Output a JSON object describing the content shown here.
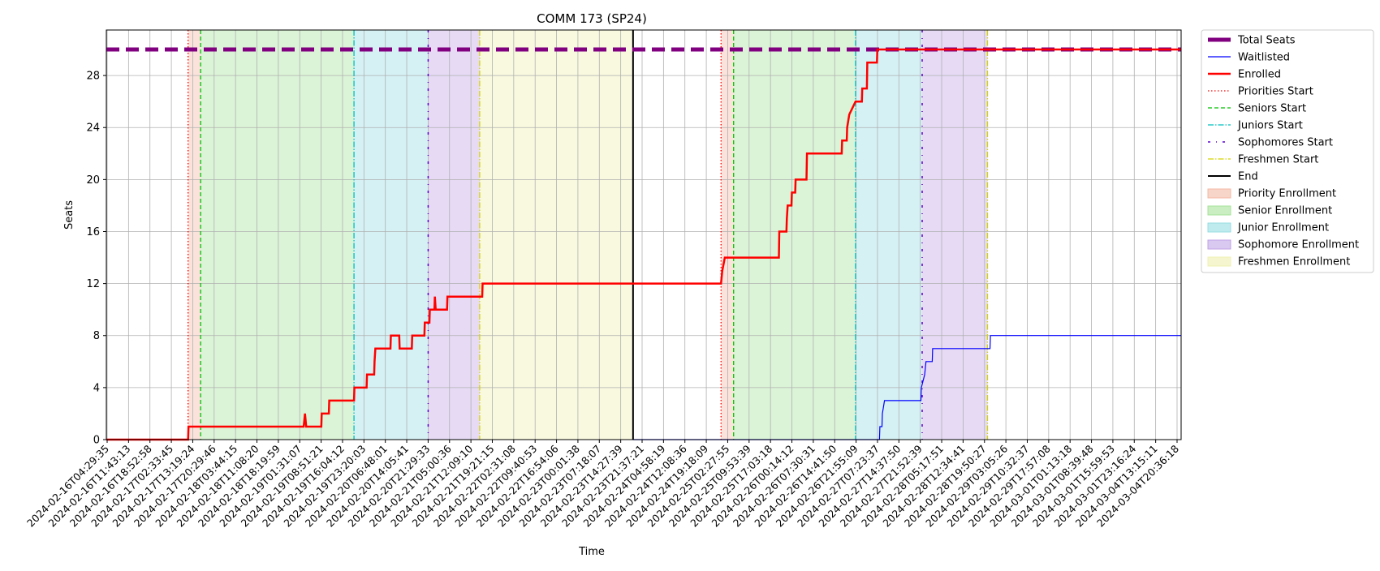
{
  "chart_data": {
    "type": "line",
    "title": "COMM 173 (SP24)",
    "xlabel": "Time",
    "ylabel": "Seats",
    "ylim": [
      0,
      31.5
    ],
    "yticks": [
      0,
      4,
      8,
      12,
      16,
      20,
      24,
      28
    ],
    "grid": true,
    "legend_position": "outside-right",
    "x_range": [
      "2024-02-16T04:29:35",
      "2024-03-05T00:00:00"
    ],
    "x_tick_labels": [
      "2024-02-16T04:29:35",
      "2024-02-16T11:43:13",
      "2024-02-16T18:52:58",
      "2024-02-17T02:33:45",
      "2024-02-17T13:19:24",
      "2024-02-17T20:29:46",
      "2024-02-18T03:44:15",
      "2024-02-18T11:08:20",
      "2024-02-18T18:19:59",
      "2024-02-19T01:31:07",
      "2024-02-19T08:51:21",
      "2024-02-19T16:04:12",
      "2024-02-19T23:20:03",
      "2024-02-20T06:48:01",
      "2024-02-20T14:05:41",
      "2024-02-20T21:29:33",
      "2024-02-21T05:00:36",
      "2024-02-21T12:09:10",
      "2024-02-21T19:21:15",
      "2024-02-22T02:31:08",
      "2024-02-22T09:40:53",
      "2024-02-22T16:54:06",
      "2024-02-23T00:01:38",
      "2024-02-23T07:18:07",
      "2024-02-23T14:27:39",
      "2024-02-23T21:37:21",
      "2024-02-24T04:58:19",
      "2024-02-24T12:08:36",
      "2024-02-24T19:18:09",
      "2024-02-25T02:27:55",
      "2024-02-25T09:53:39",
      "2024-02-25T17:03:18",
      "2024-02-26T00:14:12",
      "2024-02-26T07:30:31",
      "2024-02-26T14:41:50",
      "2024-02-26T21:55:09",
      "2024-02-27T07:23:37",
      "2024-02-27T14:37:50",
      "2024-02-27T21:52:39",
      "2024-02-28T05:17:51",
      "2024-02-28T12:34:41",
      "2024-02-28T19:50:27",
      "2024-02-29T03:05:26",
      "2024-02-29T10:32:37",
      "2024-02-29T17:57:08",
      "2024-03-01T01:13:18",
      "2024-03-01T08:39:48",
      "2024-03-01T15:59:53",
      "2024-03-01T23:16:24",
      "2024-03-04T13:15:11",
      "2024-03-04T20:36:18"
    ],
    "total_seats": 30,
    "phases": [
      {
        "name": "Priority Enrollment",
        "start": "2024-02-17T13:00:00",
        "end": "2024-02-17T18:00:00",
        "color": "#f4b9a5"
      },
      {
        "name": "Senior Enrollment",
        "start": "2024-02-17T18:00:00",
        "end": "2024-02-20T07:00:00",
        "color": "#a6e39a"
      },
      {
        "name": "Junior Enrollment",
        "start": "2024-02-20T07:00:00",
        "end": "2024-02-21T12:30:00",
        "color": "#96dde3"
      },
      {
        "name": "Sophomore Enrollment",
        "start": "2024-02-21T12:30:00",
        "end": "2024-02-22T09:00:00",
        "color": "#c0a3e6"
      },
      {
        "name": "Freshmen Enrollment",
        "start": "2024-02-22T09:00:00",
        "end": "2024-02-24T22:00:00",
        "color": "#eff0b0"
      },
      {
        "name": "Priority Enrollment",
        "start": "2024-02-26T09:00:00",
        "end": "2024-02-26T14:00:00",
        "color": "#f4b9a5"
      },
      {
        "name": "Senior Enrollment",
        "start": "2024-02-26T14:00:00",
        "end": "2024-02-28T14:30:00",
        "color": "#a6e39a"
      },
      {
        "name": "Junior Enrollment",
        "start": "2024-02-28T14:30:00",
        "end": "2024-02-29T17:00:00",
        "color": "#96dde3"
      },
      {
        "name": "Sophomore Enrollment",
        "start": "2024-02-29T17:00:00",
        "end": "2024-03-01T19:00:00",
        "color": "#c0a3e6"
      }
    ],
    "markers": [
      {
        "name": "Priorities Start",
        "t": [
          "2024-02-17T13:00:00",
          "2024-02-26T09:00:00"
        ]
      },
      {
        "name": "Seniors Start",
        "t": [
          "2024-02-17T18:00:00",
          "2024-02-26T14:00:00"
        ]
      },
      {
        "name": "Juniors Start",
        "t": [
          "2024-02-20T07:00:00",
          "2024-02-28T14:30:00"
        ]
      },
      {
        "name": "Sophomores Start",
        "t": [
          "2024-02-21T12:30:00",
          "2024-02-29T17:00:00"
        ]
      },
      {
        "name": "Freshmen Start",
        "t": [
          "2024-02-22T09:00:00",
          "2024-03-01T19:00:00"
        ]
      },
      {
        "name": "End",
        "t": [
          "2024-02-24T22:00:00"
        ]
      }
    ],
    "series": [
      {
        "name": "Enrolled",
        "points": [
          [
            "2024-02-16T04:29:35",
            0
          ],
          [
            "2024-02-17T13:00:00",
            0
          ],
          [
            "2024-02-17T13:10:00",
            1
          ],
          [
            "2024-02-19T11:00:00",
            1
          ],
          [
            "2024-02-19T11:30:00",
            2
          ],
          [
            "2024-02-19T12:00:00",
            1
          ],
          [
            "2024-02-19T18:00:00",
            1
          ],
          [
            "2024-02-19T18:10:00",
            2
          ],
          [
            "2024-02-19T21:00:00",
            2
          ],
          [
            "2024-02-19T21:10:00",
            3
          ],
          [
            "2024-02-20T07:00:00",
            3
          ],
          [
            "2024-02-20T07:10:00",
            4
          ],
          [
            "2024-02-20T12:00:00",
            4
          ],
          [
            "2024-02-20T12:10:00",
            5
          ],
          [
            "2024-02-20T15:00:00",
            5
          ],
          [
            "2024-02-20T15:10:00",
            6
          ],
          [
            "2024-02-20T15:30:00",
            7
          ],
          [
            "2024-02-20T21:30:00",
            7
          ],
          [
            "2024-02-20T21:40:00",
            8
          ],
          [
            "2024-02-21T01:00:00",
            8
          ],
          [
            "2024-02-21T01:10:00",
            7
          ],
          [
            "2024-02-21T06:00:00",
            7
          ],
          [
            "2024-02-21T06:10:00",
            8
          ],
          [
            "2024-02-21T11:00:00",
            8
          ],
          [
            "2024-02-21T11:10:00",
            9
          ],
          [
            "2024-02-21T13:00:00",
            9
          ],
          [
            "2024-02-21T13:10:00",
            10
          ],
          [
            "2024-02-21T15:00:00",
            10
          ],
          [
            "2024-02-21T15:10:00",
            11
          ],
          [
            "2024-02-21T15:30:00",
            10
          ],
          [
            "2024-02-21T20:00:00",
            10
          ],
          [
            "2024-02-21T20:10:00",
            11
          ],
          [
            "2024-02-22T10:00:00",
            11
          ],
          [
            "2024-02-22T10:10:00",
            12
          ],
          [
            "2024-02-26T09:00:00",
            12
          ],
          [
            "2024-02-26T09:30:00",
            13
          ],
          [
            "2024-02-26T10:30:00",
            14
          ],
          [
            "2024-02-27T08:00:00",
            14
          ],
          [
            "2024-02-27T08:10:00",
            16
          ],
          [
            "2024-02-27T11:00:00",
            16
          ],
          [
            "2024-02-27T11:10:00",
            17
          ],
          [
            "2024-02-27T11:30:00",
            18
          ],
          [
            "2024-02-27T13:00:00",
            18
          ],
          [
            "2024-02-27T13:10:00",
            19
          ],
          [
            "2024-02-27T14:30:00",
            19
          ],
          [
            "2024-02-27T14:40:00",
            20
          ],
          [
            "2024-02-27T19:00:00",
            20
          ],
          [
            "2024-02-27T19:10:00",
            22
          ],
          [
            "2024-02-28T09:00:00",
            22
          ],
          [
            "2024-02-28T09:10:00",
            23
          ],
          [
            "2024-02-28T11:00:00",
            23
          ],
          [
            "2024-02-28T11:10:00",
            24
          ],
          [
            "2024-02-28T12:00:00",
            25
          ],
          [
            "2024-02-28T14:30:00",
            26
          ],
          [
            "2024-02-28T17:00:00",
            26
          ],
          [
            "2024-02-28T17:10:00",
            27
          ],
          [
            "2024-02-28T19:00:00",
            27
          ],
          [
            "2024-02-28T19:10:00",
            29
          ],
          [
            "2024-02-28T23:00:00",
            29
          ],
          [
            "2024-02-28T23:10:00",
            30
          ],
          [
            "2024-03-05T00:00:00",
            30
          ]
        ]
      },
      {
        "name": "Waitlisted",
        "points": [
          [
            "2024-02-24T22:00:00",
            0
          ],
          [
            "2024-02-29T00:00:00",
            0
          ],
          [
            "2024-02-29T00:10:00",
            1
          ],
          [
            "2024-02-29T01:00:00",
            1
          ],
          [
            "2024-02-29T01:10:00",
            2
          ],
          [
            "2024-02-29T02:00:00",
            3
          ],
          [
            "2024-02-29T16:30:00",
            3
          ],
          [
            "2024-02-29T16:40:00",
            4
          ],
          [
            "2024-02-29T18:00:00",
            5
          ],
          [
            "2024-02-29T18:30:00",
            6
          ],
          [
            "2024-02-29T21:00:00",
            6
          ],
          [
            "2024-02-29T21:10:00",
            7
          ],
          [
            "2024-03-01T20:00:00",
            7
          ],
          [
            "2024-03-01T20:10:00",
            8
          ],
          [
            "2024-03-05T00:00:00",
            8
          ]
        ]
      }
    ],
    "legend": [
      "Total Seats",
      "Waitlisted",
      "Enrolled",
      "Priorities Start",
      "Seniors Start",
      "Juniors Start",
      "Sophomores Start",
      "Freshmen Start",
      "End",
      "Priority Enrollment",
      "Senior Enrollment",
      "Junior Enrollment",
      "Sophomore Enrollment",
      "Freshmen Enrollment"
    ],
    "colors": {
      "total": "#800080",
      "waitlisted": "#0000ff",
      "enrolled": "#ff0000",
      "priorities": "#ff0000",
      "seniors": "#00c000",
      "juniors": "#00bfbf",
      "sophomores": "#5a00d0",
      "freshmen": "#d4d400",
      "end": "#000000"
    }
  }
}
